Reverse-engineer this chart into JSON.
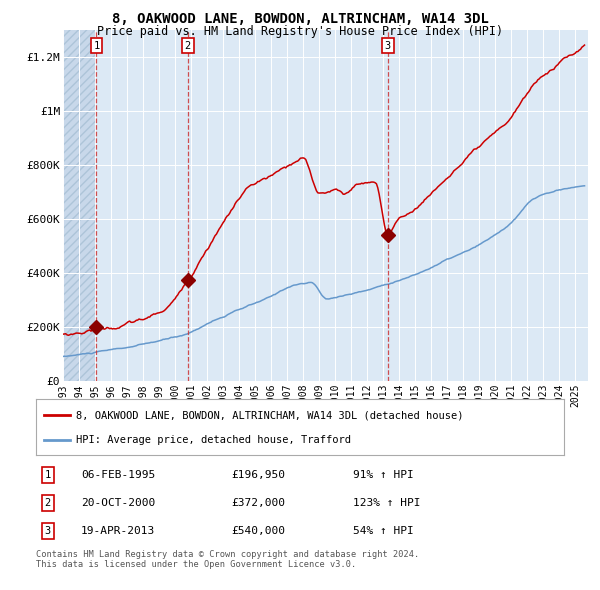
{
  "title": "8, OAKWOOD LANE, BOWDON, ALTRINCHAM, WA14 3DL",
  "subtitle": "Price paid vs. HM Land Registry's House Price Index (HPI)",
  "background_color": "#ffffff",
  "plot_bg_color": "#dce9f5",
  "grid_color": "#ffffff",
  "red_line_color": "#cc0000",
  "blue_line_color": "#6699cc",
  "sale_marker_color": "#8b0000",
  "sales": [
    {
      "number": 1,
      "date_num": 1995.09,
      "price": 196950,
      "x_vline": 1995.09
    },
    {
      "number": 2,
      "date_num": 2000.8,
      "price": 372000,
      "x_vline": 2000.8
    },
    {
      "number": 3,
      "date_num": 2013.3,
      "price": 540000,
      "x_vline": 2013.3
    }
  ],
  "xmin": 1993.0,
  "xmax": 2025.8,
  "ymin": 0,
  "ymax": 1300000,
  "yticks": [
    0,
    200000,
    400000,
    600000,
    800000,
    1000000,
    1200000
  ],
  "ytick_labels": [
    "£0",
    "£200K",
    "£400K",
    "£600K",
    "£800K",
    "£1M",
    "£1.2M"
  ],
  "legend_items": [
    {
      "label": "8, OAKWOOD LANE, BOWDON, ALTRINCHAM, WA14 3DL (detached house)",
      "color": "#cc0000"
    },
    {
      "label": "HPI: Average price, detached house, Trafford",
      "color": "#6699cc"
    }
  ],
  "table_rows": [
    {
      "num": "1",
      "date": "06-FEB-1995",
      "price": "£196,950",
      "pct": "91% ↑ HPI"
    },
    {
      "num": "2",
      "date": "20-OCT-2000",
      "price": "£372,000",
      "pct": "123% ↑ HPI"
    },
    {
      "num": "3",
      "date": "19-APR-2013",
      "price": "£540,000",
      "pct": "54% ↑ HPI"
    }
  ],
  "footer": "Contains HM Land Registry data © Crown copyright and database right 2024.\nThis data is licensed under the Open Government Licence v3.0.",
  "hatch_end": 1995.09,
  "blue_hpi_knots": {
    "1993.0": 88000,
    "1994.0": 95000,
    "1995.09": 103000,
    "1997.0": 118000,
    "1999.0": 140000,
    "2000.80": 167000,
    "2002.0": 205000,
    "2004.0": 255000,
    "2006.0": 300000,
    "2007.5": 345000,
    "2008.5": 352000,
    "2009.5": 290000,
    "2010.5": 305000,
    "2012.0": 325000,
    "2013.30": 351000,
    "2015.0": 385000,
    "2017.0": 440000,
    "2019.0": 490000,
    "2021.0": 570000,
    "2022.5": 660000,
    "2023.5": 680000,
    "2025.0": 700000
  },
  "red_hpi_knots": {
    "1993.0": 170000,
    "1994.5": 185000,
    "1995.09": 196950,
    "1996.0": 200000,
    "1997.0": 215000,
    "1998.0": 228000,
    "1999.0": 250000,
    "2000.0": 300000,
    "2000.80": 372000,
    "2002.0": 500000,
    "2003.5": 640000,
    "2004.5": 720000,
    "2006.0": 760000,
    "2007.5": 800000,
    "2008.0": 810000,
    "2009.0": 680000,
    "2010.0": 700000,
    "2010.5": 680000,
    "2011.5": 720000,
    "2012.5": 730000,
    "2013.30": 540000,
    "2013.8": 580000,
    "2014.5": 610000,
    "2015.5": 660000,
    "2016.5": 720000,
    "2017.5": 780000,
    "2018.5": 830000,
    "2019.5": 870000,
    "2020.5": 910000,
    "2021.5": 990000,
    "2022.5": 1070000,
    "2023.0": 1100000,
    "2023.5": 1120000,
    "2024.0": 1150000,
    "2024.5": 1170000,
    "2025.0": 1190000
  }
}
